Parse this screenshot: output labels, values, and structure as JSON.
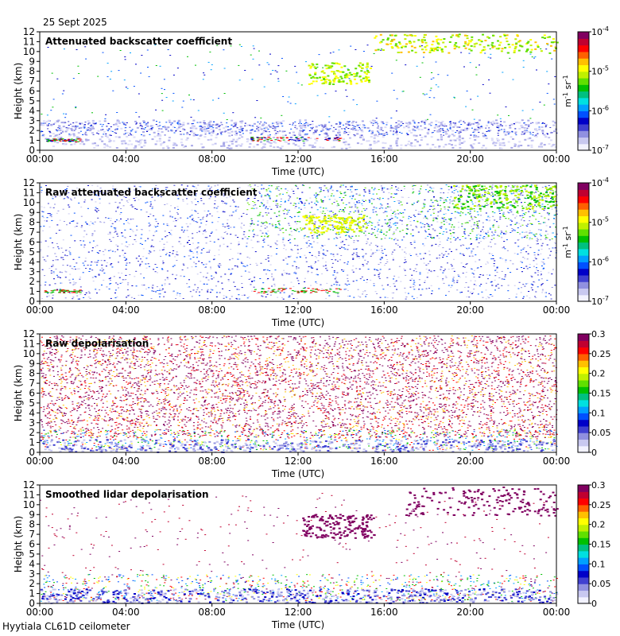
{
  "header": {
    "date": "25 Sept 2025"
  },
  "footer": {
    "instrument": "Hyytiala CL61D ceilometer"
  },
  "chart_data": [
    {
      "type": "heatmap",
      "title": "Attenuated backscatter coefficient",
      "xlabel": "Time (UTC)",
      "ylabel": "Height (km)",
      "xticks": [
        "00:00",
        "04:00",
        "08:00",
        "12:00",
        "16:00",
        "20:00",
        "00:00"
      ],
      "xlim_hours": [
        0,
        24
      ],
      "yticks": [
        0,
        1,
        2,
        3,
        4,
        5,
        6,
        7,
        8,
        9,
        10,
        11,
        12
      ],
      "ylim": [
        0,
        12
      ],
      "colorbar": {
        "scale": "log",
        "range": [
          1e-07,
          0.0001
        ],
        "ticks": [
          "10-7",
          "10-6",
          "10-5",
          "10-4"
        ],
        "unit": "m-1 sr-1"
      }
    },
    {
      "type": "heatmap",
      "title": "Raw attenuated backscatter coefficient",
      "xlabel": "Time (UTC)",
      "ylabel": "Height (km)",
      "xticks": [
        "00:00",
        "04:00",
        "08:00",
        "12:00",
        "16:00",
        "20:00",
        "00:00"
      ],
      "xlim_hours": [
        0,
        24
      ],
      "yticks": [
        0,
        1,
        2,
        3,
        4,
        5,
        6,
        7,
        8,
        9,
        10,
        11,
        12
      ],
      "ylim": [
        0,
        12
      ],
      "colorbar": {
        "scale": "log",
        "range": [
          1e-07,
          0.0001
        ],
        "ticks": [
          "10-7",
          "10-6",
          "10-5",
          "10-4"
        ],
        "unit": "m-1 sr-1"
      }
    },
    {
      "type": "heatmap",
      "title": "Raw depolarisation",
      "xlabel": "Time (UTC)",
      "ylabel": "Height (km)",
      "xticks": [
        "00:00",
        "04:00",
        "08:00",
        "12:00",
        "16:00",
        "20:00",
        "00:00"
      ],
      "xlim_hours": [
        0,
        24
      ],
      "yticks": [
        0,
        1,
        2,
        3,
        4,
        5,
        6,
        7,
        8,
        9,
        10,
        11,
        12
      ],
      "ylim": [
        0,
        12
      ],
      "colorbar": {
        "scale": "linear",
        "range": [
          0,
          0.3
        ],
        "ticks": [
          "0",
          "0.05",
          "0.1",
          "0.15",
          "0.2",
          "0.25",
          "0.3"
        ]
      }
    },
    {
      "type": "heatmap",
      "title": "Smoothed lidar depolarisation",
      "xlabel": "Time (UTC)",
      "ylabel": "Height (km)",
      "xticks": [
        "00:00",
        "04:00",
        "08:00",
        "12:00",
        "16:00",
        "20:00",
        "00:00"
      ],
      "xlim_hours": [
        0,
        24
      ],
      "yticks": [
        0,
        1,
        2,
        3,
        4,
        5,
        6,
        7,
        8,
        9,
        10,
        11,
        12
      ],
      "ylim": [
        0,
        12
      ],
      "colorbar": {
        "scale": "linear",
        "range": [
          0,
          0.3
        ],
        "ticks": [
          "0",
          "0.05",
          "0.1",
          "0.15",
          "0.2",
          "0.25",
          "0.3"
        ]
      }
    }
  ]
}
